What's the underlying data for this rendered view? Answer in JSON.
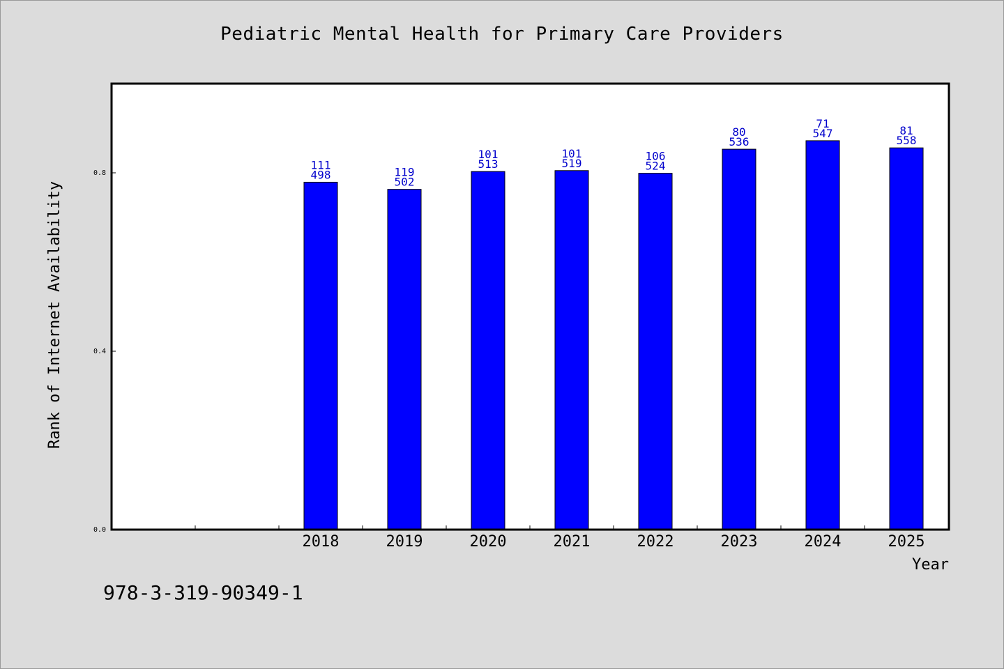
{
  "chart_data": {
    "type": "bar",
    "title": "Pediatric Mental Health for Primary Care Providers",
    "xlabel": "Year",
    "ylabel": "Rank of Internet Availability",
    "categories": [
      "2018",
      "2019",
      "2020",
      "2021",
      "2022",
      "2023",
      "2024",
      "2025"
    ],
    "values": [
      0.779,
      0.763,
      0.803,
      0.805,
      0.799,
      0.853,
      0.872,
      0.856
    ],
    "labels_top": [
      "111",
      "119",
      "101",
      "101",
      "106",
      "80",
      "71",
      "81"
    ],
    "labels_bottom": [
      "498",
      "502",
      "513",
      "519",
      "524",
      "536",
      "547",
      "558"
    ],
    "ylim": [
      0,
      1.0
    ],
    "yticks": [
      "0.0",
      "0.4",
      "0.8"
    ],
    "ytick_values": [
      0.0,
      0.4,
      0.8
    ],
    "bar_color": "#0000ff",
    "label_color": "#0000cc",
    "grid": false,
    "legend": "none"
  },
  "footer": {
    "isbn": "978-3-319-90349-1"
  }
}
